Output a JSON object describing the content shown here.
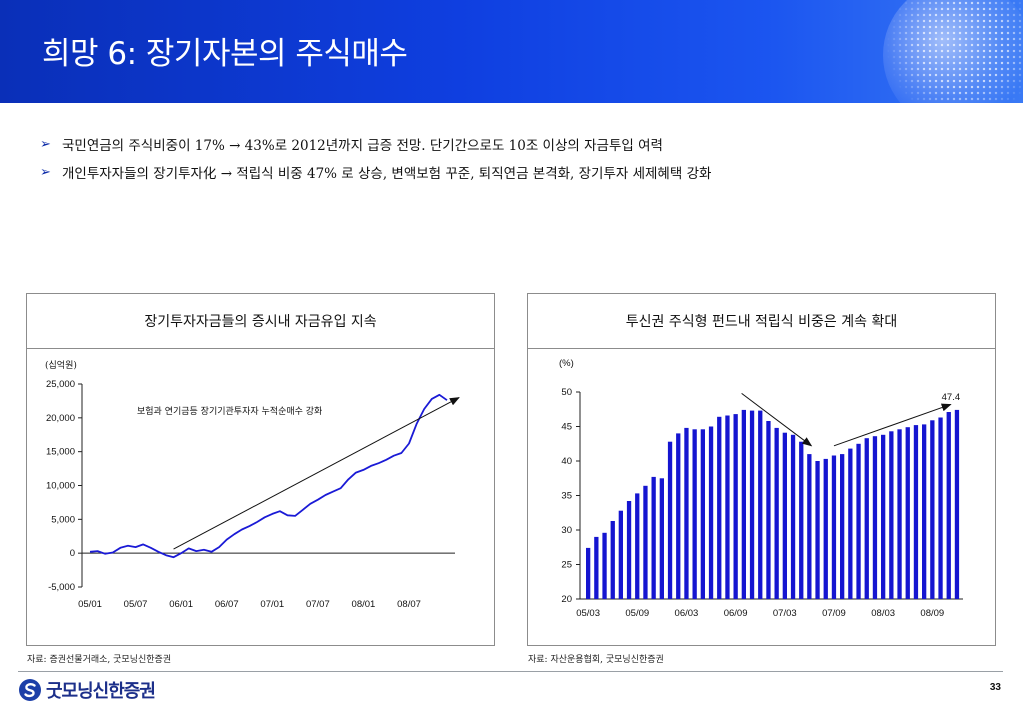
{
  "header": {
    "title": "희망 6: 장기자본의 주식매수"
  },
  "bullets": [
    {
      "marker": "➢",
      "text": "국민연금의 주식비중이 17% → 43%로 2012년까지 급증 전망. 단기간으로도 10조 이상의 자금투입 여력"
    },
    {
      "marker": "➢",
      "text": "개인투자자들의 장기투자化 → 적립식 비중 47% 로 상승, 변액보험 꾸준, 퇴직연금 본격화, 장기투자 세제혜택 강화"
    }
  ],
  "panels": {
    "left": {
      "title": "장기투자자금들의 증시내 자금유입 지속",
      "source": "자료: 증권선물거래소, 굿모닝신한증권"
    },
    "right": {
      "title": "투신권 주식형 펀드내 적립식 비중은 계속 확대",
      "source": "자료: 자산운용협회, 굿모닝신한증권"
    }
  },
  "footer": {
    "logo_text": "굿모닝신한증권",
    "page_number": "33"
  },
  "colors": {
    "banner": "#0f3fe0",
    "series": "#1a1ad6",
    "bar": "#1515d0"
  },
  "chart_data": [
    {
      "type": "line",
      "unit_label": "(십억원)",
      "annotation": "보험과 연기금등 장기기관투자자 누적순매수 강화",
      "ylim": [
        -5000,
        25000
      ],
      "yticks": [
        -5000,
        0,
        5000,
        10000,
        15000,
        20000,
        25000
      ],
      "ytick_labels": [
        "-5,000",
        "0",
        "5,000",
        "10,000",
        "15,000",
        "20,000",
        "25,000"
      ],
      "xtick_labels": [
        "05/01",
        "05/07",
        "06/01",
        "06/07",
        "07/01",
        "07/07",
        "08/01",
        "08/07"
      ],
      "x_range_months": [
        0,
        47
      ],
      "series": [
        {
          "x": [
            0,
            1,
            2,
            3,
            4,
            5,
            6,
            7,
            8,
            9,
            10,
            11,
            12,
            13,
            14,
            15,
            16,
            17,
            18,
            19,
            20,
            21,
            22,
            23,
            24,
            25,
            26,
            27,
            28,
            29,
            30,
            31,
            32,
            33,
            34,
            35,
            36,
            37,
            38,
            39,
            40,
            41,
            42,
            43,
            44,
            45,
            46,
            47
          ],
          "values": [
            200,
            300,
            -100,
            100,
            800,
            1100,
            900,
            1300,
            800,
            200,
            -300,
            -600,
            0,
            700,
            300,
            500,
            200,
            900,
            2000,
            2800,
            3500,
            4000,
            4600,
            5300,
            5800,
            6200,
            5600,
            5500,
            6400,
            7300,
            7900,
            8600,
            9100,
            9600,
            10900,
            11900,
            12300,
            12900,
            13300,
            13800,
            14400,
            14800,
            16200,
            19100,
            21300,
            22800,
            23400,
            22600
          ]
        }
      ]
    },
    {
      "type": "bar",
      "unit_label": "(%)",
      "ylim": [
        20,
        50
      ],
      "yticks": [
        20,
        25,
        30,
        35,
        40,
        45,
        50
      ],
      "xtick_labels": [
        "05/03",
        "05/09",
        "06/03",
        "06/09",
        "07/03",
        "07/09",
        "08/03",
        "08/09"
      ],
      "last_label": "47.4",
      "series": [
        {
          "values": [
            27.4,
            29.0,
            29.6,
            31.3,
            32.8,
            34.2,
            35.3,
            36.4,
            37.7,
            37.5,
            42.8,
            44.0,
            44.8,
            44.6,
            44.6,
            45.0,
            46.4,
            46.6,
            46.8,
            47.4,
            47.3,
            47.3,
            45.8,
            44.8,
            44.1,
            43.8,
            42.8,
            41.0,
            40.0,
            40.3,
            40.8,
            41.0,
            41.8,
            42.5,
            43.3,
            43.6,
            43.8,
            44.3,
            44.6,
            44.9,
            45.2,
            45.3,
            45.9,
            46.3,
            47.1,
            47.4
          ]
        }
      ]
    }
  ]
}
